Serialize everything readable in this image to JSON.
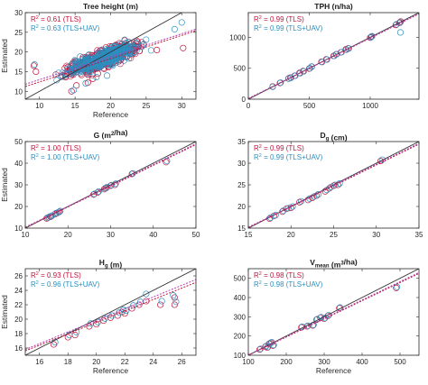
{
  "colors": {
    "tls": "#c0143c",
    "tlsuav": "#2c8fbf",
    "identity": "#333333",
    "fit_tls": "#c0143c",
    "fit_tlsuav": "#b040b0"
  },
  "chart_data": [
    {
      "type": "scatter",
      "title_parts": [
        {
          "t": "Tree height (m)"
        }
      ],
      "xlabel": "Reference",
      "ylabel": "Estimated",
      "xlim": [
        8,
        32
      ],
      "ylim": [
        8,
        30
      ],
      "xticks": [
        10,
        15,
        20,
        25,
        30
      ],
      "yticks": [
        10,
        15,
        20,
        25,
        30
      ],
      "r2": {
        "tls": "= 0.61 (TLS)",
        "tlsuav": "= 0.63 (TLS+UAV)"
      },
      "fit": {
        "tls": [
          [
            8,
            11.2
          ],
          [
            32,
            25.4
          ]
        ],
        "tlsuav": [
          [
            8,
            11.8
          ],
          [
            32,
            25.8
          ]
        ]
      },
      "cloud": {
        "seed": 7,
        "n_tls": 420,
        "n_tlsuav": 420,
        "xmin": 9,
        "xmax": 31,
        "slope": 0.65,
        "intercept": 6.0,
        "spread": 1.6
      },
      "points_tls": [
        [
          9.2,
          16.5
        ],
        [
          9.5,
          15.0
        ],
        [
          14.5,
          10.0
        ],
        [
          15.2,
          11.5
        ],
        [
          16.8,
          12.2
        ],
        [
          17.5,
          13.2
        ],
        [
          18.2,
          14.5
        ],
        [
          30.2,
          21.0
        ],
        [
          26.5,
          20.5
        ]
      ],
      "points_tlsuav": [
        [
          9.3,
          16.8
        ],
        [
          14.8,
          10.3
        ],
        [
          16.5,
          12.0
        ],
        [
          18.0,
          13.6
        ],
        [
          19.5,
          14.0
        ],
        [
          30.0,
          27.5
        ],
        [
          29.0,
          25.8
        ]
      ]
    },
    {
      "type": "scatter",
      "title_parts": [
        {
          "t": "TPH (n/ha)"
        }
      ],
      "xlabel": "",
      "ylabel": "",
      "xlim": [
        0,
        1400
      ],
      "ylim": [
        0,
        1400
      ],
      "xticks": [
        0,
        500,
        1000
      ],
      "yticks": [
        0,
        500,
        1000
      ],
      "r2": {
        "tls": "= 0.99 (TLS)",
        "tlsuav": "= 0.99 (TLS+UAV)"
      },
      "fit": {
        "tls": [
          [
            0,
            8
          ],
          [
            1400,
            1380
          ]
        ],
        "tlsuav": [
          [
            0,
            10
          ],
          [
            1400,
            1385
          ]
        ]
      },
      "points_tls": [
        [
          200,
          205
        ],
        [
          260,
          262
        ],
        [
          330,
          335
        ],
        [
          345,
          350
        ],
        [
          380,
          378
        ],
        [
          420,
          425
        ],
        [
          450,
          455
        ],
        [
          500,
          495
        ],
        [
          520,
          525
        ],
        [
          600,
          605
        ],
        [
          640,
          645
        ],
        [
          700,
          700
        ],
        [
          720,
          725
        ],
        [
          760,
          758
        ],
        [
          800,
          805
        ],
        [
          820,
          822
        ],
        [
          1000,
          995
        ],
        [
          1010,
          1012
        ],
        [
          1210,
          1200
        ],
        [
          1240,
          1235
        ],
        [
          1250,
          1255
        ]
      ],
      "points_tlsuav": [
        [
          200,
          200
        ],
        [
          265,
          268
        ],
        [
          330,
          332
        ],
        [
          350,
          345
        ],
        [
          385,
          380
        ],
        [
          425,
          420
        ],
        [
          455,
          450
        ],
        [
          505,
          500
        ],
        [
          520,
          528
        ],
        [
          605,
          600
        ],
        [
          645,
          640
        ],
        [
          705,
          700
        ],
        [
          725,
          728
        ],
        [
          765,
          760
        ],
        [
          805,
          800
        ],
        [
          825,
          820
        ],
        [
          1005,
          1000
        ],
        [
          1015,
          1018
        ],
        [
          1215,
          1210
        ],
        [
          1245,
          1240
        ],
        [
          1248,
          1080
        ]
      ]
    },
    {
      "type": "scatter",
      "title_parts": [
        {
          "t": "G (m"
        },
        {
          "t": "2",
          "sup": true
        },
        {
          "t": "/ha)"
        }
      ],
      "xlabel": "",
      "ylabel": "Estimated",
      "xlim": [
        10,
        50
      ],
      "ylim": [
        10,
        50
      ],
      "xticks": [
        10,
        20,
        30,
        40,
        50
      ],
      "yticks": [
        10,
        20,
        30,
        40,
        50
      ],
      "r2": {
        "tls": "= 1.00 (TLS)",
        "tlsuav": "= 1.00 (TLS+UAV)"
      },
      "fit": {
        "tls": [
          [
            10,
            10.2
          ],
          [
            50,
            48.6
          ]
        ],
        "tlsuav": [
          [
            10,
            10.4
          ],
          [
            50,
            49.0
          ]
        ]
      },
      "points_tls": [
        [
          15.0,
          14.5
        ],
        [
          15.5,
          15.0
        ],
        [
          16.0,
          15.3
        ],
        [
          17.0,
          16.5
        ],
        [
          17.5,
          17.0
        ],
        [
          18.0,
          17.5
        ],
        [
          26.0,
          25.5
        ],
        [
          27.0,
          26.5
        ],
        [
          28.5,
          28.0
        ],
        [
          29.0,
          28.6
        ],
        [
          30.0,
          29.6
        ],
        [
          31.0,
          30.0
        ],
        [
          35.0,
          35.0
        ],
        [
          43.0,
          40.5
        ]
      ],
      "points_tlsuav": [
        [
          15.2,
          14.8
        ],
        [
          15.8,
          15.4
        ],
        [
          16.3,
          15.8
        ],
        [
          17.2,
          16.9
        ],
        [
          17.8,
          17.4
        ],
        [
          18.2,
          17.9
        ],
        [
          26.2,
          25.8
        ],
        [
          27.2,
          26.9
        ],
        [
          28.7,
          28.4
        ],
        [
          29.2,
          29.0
        ],
        [
          30.2,
          29.9
        ],
        [
          31.2,
          30.5
        ],
        [
          35.2,
          35.3
        ],
        [
          43.2,
          41.0
        ]
      ]
    },
    {
      "type": "scatter",
      "title_parts": [
        {
          "t": "D"
        },
        {
          "t": "g",
          "sub": true
        },
        {
          "t": " (cm)"
        }
      ],
      "xlabel": "",
      "ylabel": "",
      "xlim": [
        15,
        35
      ],
      "ylim": [
        15,
        35
      ],
      "xticks": [
        15,
        20,
        25,
        30,
        35
      ],
      "yticks": [
        15,
        20,
        25,
        30,
        35
      ],
      "r2": {
        "tls": "= 0.99 (TLS)",
        "tlsuav": "= 0.99 (TLS+UAV)"
      },
      "fit": {
        "tls": [
          [
            15,
            15.1
          ],
          [
            35,
            34.4
          ]
        ],
        "tlsuav": [
          [
            15,
            15.2
          ],
          [
            35,
            34.6
          ]
        ]
      },
      "points_tls": [
        [
          17.5,
          17.2
        ],
        [
          18.0,
          17.8
        ],
        [
          19.0,
          18.8
        ],
        [
          19.5,
          19.5
        ],
        [
          20.0,
          19.7
        ],
        [
          21.0,
          21.0
        ],
        [
          22.0,
          21.5
        ],
        [
          22.5,
          22.0
        ],
        [
          23.0,
          22.5
        ],
        [
          24.0,
          23.5
        ],
        [
          24.5,
          24.2
        ],
        [
          25.0,
          24.8
        ],
        [
          25.5,
          25.0
        ],
        [
          30.5,
          30.5
        ]
      ],
      "points_tlsuav": [
        [
          17.6,
          17.4
        ],
        [
          18.2,
          18.0
        ],
        [
          19.1,
          19.0
        ],
        [
          19.7,
          19.6
        ],
        [
          20.2,
          20.0
        ],
        [
          21.2,
          21.2
        ],
        [
          22.2,
          21.8
        ],
        [
          22.7,
          22.3
        ],
        [
          23.2,
          22.8
        ],
        [
          24.2,
          23.8
        ],
        [
          24.7,
          24.5
        ],
        [
          25.2,
          25.0
        ],
        [
          25.7,
          25.3
        ],
        [
          30.7,
          30.8
        ]
      ]
    },
    {
      "type": "scatter",
      "title_parts": [
        {
          "t": "H"
        },
        {
          "t": "g",
          "sub": true
        },
        {
          "t": " (m)"
        }
      ],
      "xlabel": "Reference",
      "ylabel": "Estimated",
      "xlim": [
        15,
        27
      ],
      "ylim": [
        15,
        27
      ],
      "xticks": [
        16,
        18,
        20,
        22,
        24,
        26
      ],
      "yticks": [
        16,
        18,
        20,
        22,
        24,
        26
      ],
      "r2": {
        "tls": "= 0.93 (TLS)",
        "tlsuav": "= 0.96 (TLS+UAV)"
      },
      "fit": {
        "tls": [
          [
            15,
            15.6
          ],
          [
            27,
            25.1
          ]
        ],
        "tlsuav": [
          [
            15,
            15.8
          ],
          [
            27,
            25.5
          ]
        ]
      },
      "points_tls": [
        [
          17.0,
          16.5
        ],
        [
          18.0,
          17.5
        ],
        [
          18.5,
          17.8
        ],
        [
          19.5,
          19.0
        ],
        [
          20.0,
          19.3
        ],
        [
          20.5,
          19.8
        ],
        [
          21.0,
          20.2
        ],
        [
          21.5,
          20.5
        ],
        [
          21.8,
          21.0
        ],
        [
          22.0,
          20.8
        ],
        [
          22.5,
          21.5
        ],
        [
          23.0,
          22.0
        ],
        [
          23.5,
          22.5
        ],
        [
          24.5,
          22.0
        ],
        [
          25.5,
          22.0
        ],
        [
          25.5,
          23.0
        ]
      ],
      "points_tlsuav": [
        [
          17.1,
          16.8
        ],
        [
          18.1,
          17.8
        ],
        [
          18.6,
          18.2
        ],
        [
          19.6,
          19.4
        ],
        [
          20.1,
          19.6
        ],
        [
          20.6,
          20.1
        ],
        [
          21.1,
          20.5
        ],
        [
          21.6,
          20.9
        ],
        [
          21.9,
          21.3
        ],
        [
          22.1,
          21.2
        ],
        [
          22.6,
          21.9
        ],
        [
          23.1,
          22.4
        ],
        [
          23.5,
          23.5
        ],
        [
          24.6,
          22.5
        ],
        [
          25.6,
          22.4
        ],
        [
          25.4,
          23.3
        ]
      ]
    },
    {
      "type": "scatter",
      "title_parts": [
        {
          "t": "V"
        },
        {
          "t": "mean",
          "sub": true
        },
        {
          "t": " (m"
        },
        {
          "t": "3",
          "sup": true
        },
        {
          "t": "/ha)"
        }
      ],
      "xlabel": "Reference",
      "ylabel": "",
      "xlim": [
        100,
        550
      ],
      "ylim": [
        100,
        550
      ],
      "xticks": [
        100,
        200,
        300,
        400,
        500
      ],
      "yticks": [
        100,
        200,
        300,
        400,
        500
      ],
      "r2": {
        "tls": "= 0.98 (TLS)",
        "tlsuav": "= 0.98 (TLS+UAV)"
      },
      "fit": {
        "tls": [
          [
            100,
            100
          ],
          [
            550,
            525
          ]
        ],
        "tlsuav": [
          [
            100,
            102
          ],
          [
            550,
            530
          ]
        ]
      },
      "points_tls": [
        [
          130,
          130
        ],
        [
          145,
          145
        ],
        [
          150,
          140
        ],
        [
          155,
          160
        ],
        [
          160,
          165
        ],
        [
          165,
          150
        ],
        [
          240,
          245
        ],
        [
          255,
          250
        ],
        [
          270,
          255
        ],
        [
          280,
          285
        ],
        [
          290,
          295
        ],
        [
          300,
          290
        ],
        [
          310,
          305
        ],
        [
          340,
          345
        ],
        [
          490,
          450
        ]
      ],
      "points_tlsuav": [
        [
          132,
          133
        ],
        [
          147,
          148
        ],
        [
          152,
          143
        ],
        [
          157,
          162
        ],
        [
          162,
          168
        ],
        [
          167,
          153
        ],
        [
          242,
          248
        ],
        [
          257,
          253
        ],
        [
          272,
          258
        ],
        [
          282,
          288
        ],
        [
          292,
          298
        ],
        [
          302,
          293
        ],
        [
          312,
          308
        ],
        [
          342,
          348
        ],
        [
          492,
          455
        ]
      ]
    }
  ]
}
